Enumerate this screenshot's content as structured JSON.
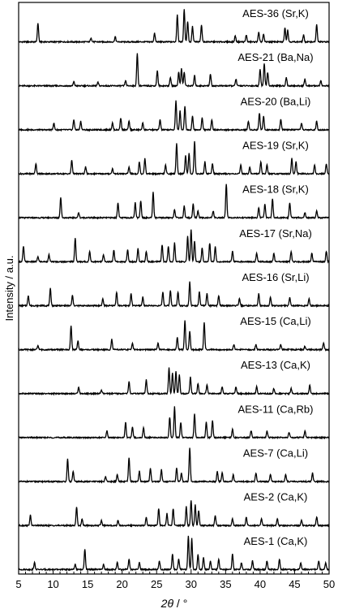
{
  "chart_data": {
    "type": "line",
    "ylabel": "Intensity / a.u.",
    "xlabel_main": "2θ",
    "xlabel_unit": "°",
    "xlim": [
      5,
      50
    ],
    "xticks": [
      5,
      10,
      15,
      20,
      25,
      30,
      35,
      40,
      45,
      50
    ],
    "series": [
      {
        "name": "AES-36 (Sr,K)",
        "peaks": [
          [
            7.8,
            0.55
          ],
          [
            15.5,
            0.12
          ],
          [
            19.0,
            0.15
          ],
          [
            24.7,
            0.25
          ],
          [
            28.0,
            0.8
          ],
          [
            29.0,
            0.95
          ],
          [
            29.5,
            0.6
          ],
          [
            30.2,
            0.45
          ],
          [
            31.5,
            0.5
          ],
          [
            36.4,
            0.18
          ],
          [
            38.0,
            0.2
          ],
          [
            39.8,
            0.28
          ],
          [
            40.5,
            0.22
          ],
          [
            43.6,
            0.42
          ],
          [
            44.0,
            0.35
          ],
          [
            46.3,
            0.2
          ],
          [
            48.2,
            0.5
          ]
        ]
      },
      {
        "name": "AES-21 (Ba,Na)",
        "peaks": [
          [
            13.0,
            0.12
          ],
          [
            16.5,
            0.1
          ],
          [
            20.5,
            0.15
          ],
          [
            22.2,
            0.95
          ],
          [
            25.1,
            0.45
          ],
          [
            27.0,
            0.25
          ],
          [
            28.2,
            0.4
          ],
          [
            28.6,
            0.5
          ],
          [
            29.0,
            0.4
          ],
          [
            30.5,
            0.3
          ],
          [
            32.8,
            0.35
          ],
          [
            36.5,
            0.2
          ],
          [
            40.0,
            0.5
          ],
          [
            40.6,
            0.65
          ],
          [
            41.1,
            0.4
          ],
          [
            43.8,
            0.25
          ],
          [
            46.5,
            0.2
          ],
          [
            48.8,
            0.15
          ]
        ]
      },
      {
        "name": "AES-20 (Ba,Li)",
        "peaks": [
          [
            10.1,
            0.2
          ],
          [
            13.0,
            0.3
          ],
          [
            14.0,
            0.25
          ],
          [
            18.6,
            0.2
          ],
          [
            19.8,
            0.35
          ],
          [
            21.0,
            0.25
          ],
          [
            23.0,
            0.2
          ],
          [
            25.5,
            0.3
          ],
          [
            27.8,
            0.85
          ],
          [
            28.4,
            0.55
          ],
          [
            29.1,
            0.7
          ],
          [
            30.2,
            0.4
          ],
          [
            31.6,
            0.35
          ],
          [
            33.0,
            0.3
          ],
          [
            38.3,
            0.25
          ],
          [
            39.9,
            0.5
          ],
          [
            40.5,
            0.4
          ],
          [
            43.0,
            0.3
          ],
          [
            46.0,
            0.2
          ],
          [
            48.2,
            0.25
          ]
        ]
      },
      {
        "name": "AES-19 (Sr,K)",
        "peaks": [
          [
            7.5,
            0.3
          ],
          [
            12.7,
            0.4
          ],
          [
            14.7,
            0.2
          ],
          [
            18.6,
            0.15
          ],
          [
            21.0,
            0.2
          ],
          [
            22.5,
            0.35
          ],
          [
            23.3,
            0.45
          ],
          [
            26.3,
            0.25
          ],
          [
            27.9,
            0.9
          ],
          [
            29.2,
            0.55
          ],
          [
            29.7,
            0.6
          ],
          [
            30.5,
            0.95
          ],
          [
            32.0,
            0.35
          ],
          [
            33.1,
            0.3
          ],
          [
            37.2,
            0.25
          ],
          [
            38.5,
            0.2
          ],
          [
            40.1,
            0.35
          ],
          [
            41.0,
            0.25
          ],
          [
            44.6,
            0.45
          ],
          [
            45.2,
            0.35
          ],
          [
            47.9,
            0.25
          ],
          [
            49.6,
            0.3
          ]
        ]
      },
      {
        "name": "AES-18 (Sr,K)",
        "peaks": [
          [
            11.1,
            0.6
          ],
          [
            13.7,
            0.15
          ],
          [
            19.4,
            0.45
          ],
          [
            21.9,
            0.45
          ],
          [
            22.7,
            0.5
          ],
          [
            24.5,
            0.75
          ],
          [
            27.6,
            0.25
          ],
          [
            29.0,
            0.35
          ],
          [
            30.3,
            0.4
          ],
          [
            31.0,
            0.2
          ],
          [
            33.2,
            0.2
          ],
          [
            35.1,
            1.0
          ],
          [
            39.8,
            0.3
          ],
          [
            40.7,
            0.4
          ],
          [
            41.8,
            0.55
          ],
          [
            44.3,
            0.45
          ],
          [
            46.5,
            0.15
          ],
          [
            48.2,
            0.2
          ]
        ]
      },
      {
        "name": "AES-17 (Sr,Na)",
        "peaks": [
          [
            5.7,
            0.45
          ],
          [
            7.8,
            0.15
          ],
          [
            9.4,
            0.2
          ],
          [
            13.2,
            0.7
          ],
          [
            15.3,
            0.3
          ],
          [
            17.3,
            0.2
          ],
          [
            18.8,
            0.35
          ],
          [
            20.8,
            0.35
          ],
          [
            22.3,
            0.4
          ],
          [
            23.5,
            0.3
          ],
          [
            25.8,
            0.5
          ],
          [
            26.7,
            0.45
          ],
          [
            27.6,
            0.55
          ],
          [
            29.5,
            0.75
          ],
          [
            30.0,
            0.95
          ],
          [
            30.5,
            0.6
          ],
          [
            31.6,
            0.4
          ],
          [
            32.7,
            0.55
          ],
          [
            33.5,
            0.45
          ],
          [
            36.0,
            0.3
          ],
          [
            39.5,
            0.25
          ],
          [
            42.0,
            0.25
          ],
          [
            44.5,
            0.3
          ],
          [
            47.5,
            0.25
          ],
          [
            49.6,
            0.3
          ]
        ]
      },
      {
        "name": "AES-16 (Sr,Li)",
        "peaks": [
          [
            6.4,
            0.3
          ],
          [
            9.6,
            0.5
          ],
          [
            12.8,
            0.3
          ],
          [
            17.2,
            0.2
          ],
          [
            19.2,
            0.4
          ],
          [
            21.3,
            0.35
          ],
          [
            23.0,
            0.25
          ],
          [
            25.9,
            0.4
          ],
          [
            27.0,
            0.45
          ],
          [
            28.1,
            0.4
          ],
          [
            29.8,
            0.7
          ],
          [
            31.2,
            0.4
          ],
          [
            32.3,
            0.35
          ],
          [
            34.0,
            0.3
          ],
          [
            37.0,
            0.2
          ],
          [
            39.8,
            0.35
          ],
          [
            41.5,
            0.25
          ],
          [
            44.3,
            0.25
          ],
          [
            47.1,
            0.2
          ]
        ]
      },
      {
        "name": "AES-15 (Ca,Li)",
        "peaks": [
          [
            7.8,
            0.12
          ],
          [
            12.6,
            0.7
          ],
          [
            13.6,
            0.25
          ],
          [
            18.5,
            0.3
          ],
          [
            21.5,
            0.2
          ],
          [
            25.2,
            0.2
          ],
          [
            28.0,
            0.35
          ],
          [
            29.1,
            0.85
          ],
          [
            29.8,
            0.55
          ],
          [
            31.9,
            0.8
          ],
          [
            36.2,
            0.15
          ],
          [
            39.4,
            0.15
          ],
          [
            43.0,
            0.15
          ],
          [
            46.5,
            0.1
          ],
          [
            49.2,
            0.2
          ]
        ]
      },
      {
        "name": "AES-13 (Ca,K)",
        "peaks": [
          [
            13.7,
            0.2
          ],
          [
            17.0,
            0.1
          ],
          [
            21.0,
            0.35
          ],
          [
            23.5,
            0.4
          ],
          [
            26.8,
            0.75
          ],
          [
            27.3,
            0.6
          ],
          [
            27.8,
            0.65
          ],
          [
            28.3,
            0.55
          ],
          [
            29.9,
            0.5
          ],
          [
            31.0,
            0.3
          ],
          [
            32.3,
            0.25
          ],
          [
            34.5,
            0.2
          ],
          [
            36.5,
            0.2
          ],
          [
            39.5,
            0.2
          ],
          [
            42.0,
            0.15
          ],
          [
            44.5,
            0.15
          ],
          [
            47.2,
            0.25
          ]
        ]
      },
      {
        "name": "AES-11 (Ca,Rb)",
        "peaks": [
          [
            17.8,
            0.2
          ],
          [
            20.5,
            0.45
          ],
          [
            21.5,
            0.3
          ],
          [
            23.1,
            0.3
          ],
          [
            26.9,
            0.6
          ],
          [
            27.6,
            0.9
          ],
          [
            28.5,
            0.45
          ],
          [
            30.5,
            0.7
          ],
          [
            32.2,
            0.45
          ],
          [
            33.1,
            0.5
          ],
          [
            36.0,
            0.25
          ],
          [
            38.7,
            0.2
          ],
          [
            41.0,
            0.2
          ],
          [
            44.2,
            0.15
          ],
          [
            46.5,
            0.2
          ]
        ]
      },
      {
        "name": "AES-7 (Ca,Li)",
        "peaks": [
          [
            12.1,
            0.65
          ],
          [
            12.9,
            0.3
          ],
          [
            17.6,
            0.15
          ],
          [
            19.3,
            0.2
          ],
          [
            21.0,
            0.7
          ],
          [
            22.5,
            0.3
          ],
          [
            24.1,
            0.4
          ],
          [
            25.7,
            0.35
          ],
          [
            27.9,
            0.4
          ],
          [
            28.6,
            0.25
          ],
          [
            29.8,
            1.0
          ],
          [
            33.8,
            0.3
          ],
          [
            34.5,
            0.25
          ],
          [
            36.1,
            0.2
          ],
          [
            39.4,
            0.25
          ],
          [
            41.5,
            0.2
          ],
          [
            43.7,
            0.2
          ],
          [
            47.6,
            0.25
          ]
        ]
      },
      {
        "name": "AES-2 (Ca,K)",
        "peaks": [
          [
            6.7,
            0.3
          ],
          [
            13.4,
            0.55
          ],
          [
            14.2,
            0.2
          ],
          [
            17.0,
            0.15
          ],
          [
            19.4,
            0.15
          ],
          [
            23.5,
            0.25
          ],
          [
            25.3,
            0.5
          ],
          [
            26.5,
            0.35
          ],
          [
            27.4,
            0.5
          ],
          [
            29.3,
            0.55
          ],
          [
            30.0,
            0.75
          ],
          [
            30.6,
            0.6
          ],
          [
            31.1,
            0.45
          ],
          [
            33.5,
            0.3
          ],
          [
            36.0,
            0.2
          ],
          [
            38.0,
            0.25
          ],
          [
            40.2,
            0.2
          ],
          [
            42.5,
            0.2
          ],
          [
            46.0,
            0.15
          ],
          [
            48.2,
            0.25
          ]
        ]
      },
      {
        "name": "AES-1 (Ca,K)",
        "peaks": [
          [
            7.3,
            0.2
          ],
          [
            13.2,
            0.15
          ],
          [
            14.6,
            0.6
          ],
          [
            17.3,
            0.15
          ],
          [
            19.3,
            0.2
          ],
          [
            21.0,
            0.3
          ],
          [
            22.5,
            0.2
          ],
          [
            25.4,
            0.25
          ],
          [
            27.3,
            0.45
          ],
          [
            28.2,
            0.3
          ],
          [
            29.6,
            1.0
          ],
          [
            30.1,
            0.9
          ],
          [
            31.0,
            0.45
          ],
          [
            31.8,
            0.35
          ],
          [
            32.8,
            0.25
          ],
          [
            34.0,
            0.3
          ],
          [
            36.0,
            0.45
          ],
          [
            37.3,
            0.2
          ],
          [
            38.9,
            0.25
          ],
          [
            41.0,
            0.25
          ],
          [
            42.8,
            0.3
          ],
          [
            45.9,
            0.2
          ],
          [
            48.5,
            0.25
          ],
          [
            49.5,
            0.2
          ]
        ]
      }
    ]
  }
}
